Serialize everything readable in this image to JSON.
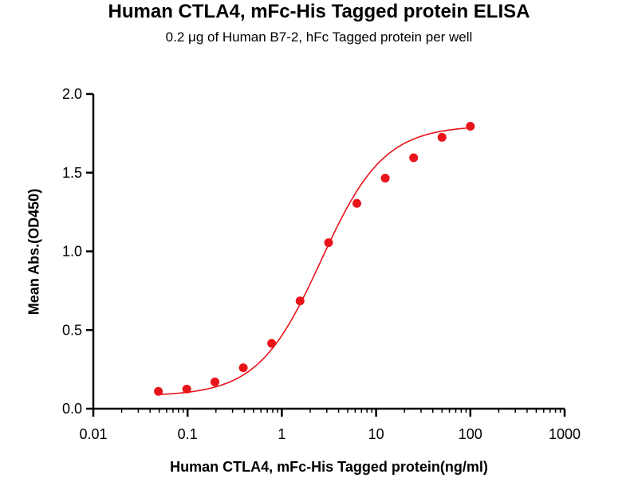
{
  "chart_data": {
    "type": "scatter",
    "title": "Human CTLA4, mFc-His Tagged protein ELISA",
    "subtitle": "0.2 μg of Human B7-2, hFc Tagged protein per well",
    "xlabel": "Human CTLA4, mFc-His Tagged protein(ng/ml)",
    "ylabel": "Mean Abs.(OD450)",
    "x_scale": "log",
    "xlim": [
      0.01,
      1000
    ],
    "ylim": [
      0,
      2.0
    ],
    "x_ticks": [
      "0.01",
      "0.1",
      "1",
      "10",
      "100",
      "1000"
    ],
    "y_ticks": [
      "0.0",
      "0.5",
      "1.0",
      "1.5",
      "2.0"
    ],
    "series": [
      {
        "color": "#e8141a",
        "x": [
          0.049,
          0.098,
          0.195,
          0.39,
          0.78,
          1.56,
          3.13,
          6.25,
          12.5,
          25,
          50,
          100
        ],
        "y": [
          0.11,
          0.125,
          0.17,
          0.26,
          0.415,
          0.685,
          1.055,
          1.305,
          1.465,
          1.595,
          1.725,
          1.795
        ]
      }
    ],
    "fit_curve": {
      "color": "#e8141a",
      "model": "4PL",
      "bottom": 0.08,
      "top": 1.8,
      "ec50": 2.6,
      "hill": 1.3
    },
    "grid": false,
    "legend": "none"
  }
}
